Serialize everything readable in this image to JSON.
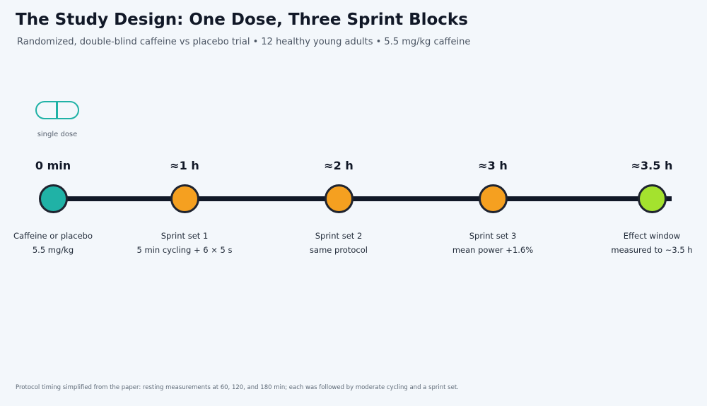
{
  "title": "The Study Design: One Dose, Three Sprint Blocks",
  "subtitle": "Randomized, double-blind caffeine vs placebo trial • 12 healthy young adults • 5.5 mg/kg caffeine",
  "dose_icon": {
    "icon": "capsule-icon",
    "label": "single dose",
    "color": "#20b2a6"
  },
  "timeline": {
    "stages": [
      {
        "time": "0 min",
        "line1": "Caffeine or placebo",
        "line2": "5.5 mg/kg",
        "color": "#20b2a6"
      },
      {
        "time": "≈1 h",
        "line1": "Sprint set 1",
        "line2": "5 min cycling + 6 × 5 s",
        "color": "#f5a020"
      },
      {
        "time": "≈2 h",
        "line1": "Sprint set 2",
        "line2": "same protocol",
        "color": "#f5a020"
      },
      {
        "time": "≈3 h",
        "line1": "Sprint set 3",
        "line2": "mean power +1.6%",
        "color": "#f5a020"
      },
      {
        "time": "≈3.5 h",
        "line1": "Effect window",
        "line2": "measured to ~3.5 h",
        "color": "#a4e22e"
      }
    ]
  },
  "footnote": "Protocol timing simplified from the paper: resting measurements at 60, 120, and 180 min; each was followed by moderate cycling and a sprint set."
}
